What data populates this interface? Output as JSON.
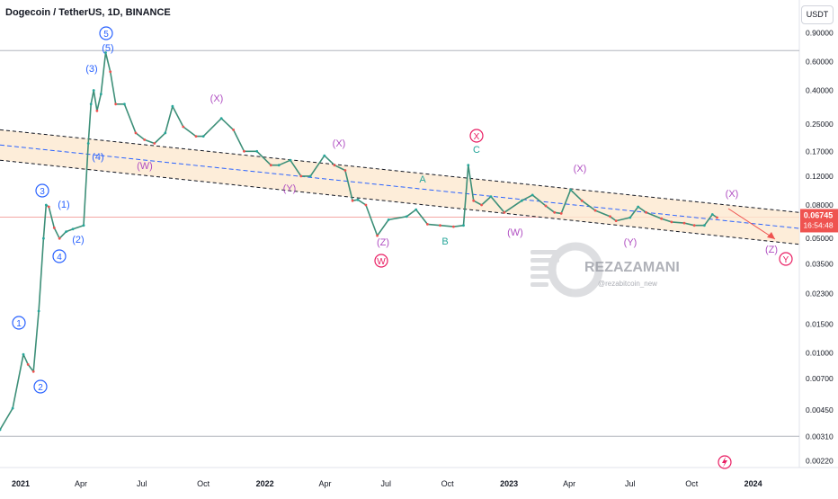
{
  "header": {
    "title": "Dogecoin / TetherUS, 1D, BINANCE",
    "currency_button": "USDT"
  },
  "price_box": {
    "price": "0.06745",
    "countdown": "16:54:48"
  },
  "watermark": {
    "name": "REZAZAMANI",
    "handle": "@rezabitcoin_new"
  },
  "colors": {
    "up": "#26a69a",
    "down": "#ef5350",
    "channel_fill": "#fde9cf",
    "channel_line": "#131722",
    "mid_line": "#2962ff",
    "impulse": "#2962ff",
    "wxy": "#b04ec2",
    "major": "#e91e63",
    "abc": "#26a69a"
  },
  "chart_data": {
    "type": "line",
    "y_scale": "log",
    "y_ticks": [
      "0.90000",
      "0.60000",
      "0.40000",
      "0.25000",
      "0.17000",
      "0.12000",
      "0.08000",
      "0.05000",
      "0.03500",
      "0.02300",
      "0.01500",
      "0.01000",
      "0.00700",
      "0.00450",
      "0.00310",
      "0.00220"
    ],
    "x_ticks": [
      "2021",
      "Apr",
      "Jul",
      "Oct",
      "2022",
      "Apr",
      "Jul",
      "Oct",
      "2023",
      "Apr",
      "Jul",
      "Oct",
      "2024"
    ],
    "series": [
      {
        "x": [
          "2020-12-01",
          "2020-12-20",
          "2021-01-05",
          "2021-01-12",
          "2021-01-20",
          "2021-01-28",
          "2021-02-04",
          "2021-02-08",
          "2021-02-12",
          "2021-02-20",
          "2021-02-28",
          "2021-03-10",
          "2021-03-20",
          "2021-04-05",
          "2021-04-12",
          "2021-04-16",
          "2021-04-20",
          "2021-04-25",
          "2021-05-01",
          "2021-05-08",
          "2021-05-15",
          "2021-05-23",
          "2021-06-05",
          "2021-06-22",
          "2021-07-05",
          "2021-07-20",
          "2021-08-05",
          "2021-08-16",
          "2021-09-01",
          "2021-09-20",
          "2021-10-01",
          "2021-10-28",
          "2021-11-15",
          "2021-12-01",
          "2021-12-20",
          "2022-01-10",
          "2022-01-22",
          "2022-02-08",
          "2022-02-24",
          "2022-03-10",
          "2022-03-31",
          "2022-04-15",
          "2022-05-01",
          "2022-05-12",
          "2022-05-20",
          "2022-06-01",
          "2022-06-18",
          "2022-07-05",
          "2022-08-01",
          "2022-08-15",
          "2022-09-01",
          "2022-09-20",
          "2022-10-10",
          "2022-10-25",
          "2022-11-01",
          "2022-11-09",
          "2022-11-21",
          "2022-12-05",
          "2022-12-25",
          "2023-01-20",
          "2023-02-05",
          "2023-02-25",
          "2023-03-10",
          "2023-03-20",
          "2023-04-03",
          "2023-04-20",
          "2023-05-10",
          "2023-06-01",
          "2023-06-10",
          "2023-07-01",
          "2023-07-13",
          "2023-07-25",
          "2023-08-17",
          "2023-09-01",
          "2023-09-20",
          "2023-10-05",
          "2023-10-20",
          "2023-11-01",
          "2023-11-08"
        ],
        "y": [
          0.0034,
          0.0046,
          0.0098,
          0.0085,
          0.0077,
          0.018,
          0.05,
          0.08,
          0.078,
          0.058,
          0.05,
          0.055,
          0.057,
          0.06,
          0.19,
          0.33,
          0.4,
          0.3,
          0.38,
          0.68,
          0.52,
          0.33,
          0.33,
          0.22,
          0.2,
          0.19,
          0.22,
          0.32,
          0.24,
          0.21,
          0.21,
          0.27,
          0.23,
          0.17,
          0.17,
          0.14,
          0.14,
          0.15,
          0.12,
          0.12,
          0.16,
          0.14,
          0.13,
          0.085,
          0.086,
          0.08,
          0.052,
          0.065,
          0.068,
          0.075,
          0.061,
          0.06,
          0.059,
          0.06,
          0.14,
          0.085,
          0.08,
          0.09,
          0.072,
          0.085,
          0.092,
          0.079,
          0.072,
          0.071,
          0.099,
          0.085,
          0.074,
          0.068,
          0.064,
          0.067,
          0.078,
          0.072,
          0.066,
          0.063,
          0.062,
          0.06,
          0.06,
          0.07,
          0.067
        ]
      }
    ]
  }
}
